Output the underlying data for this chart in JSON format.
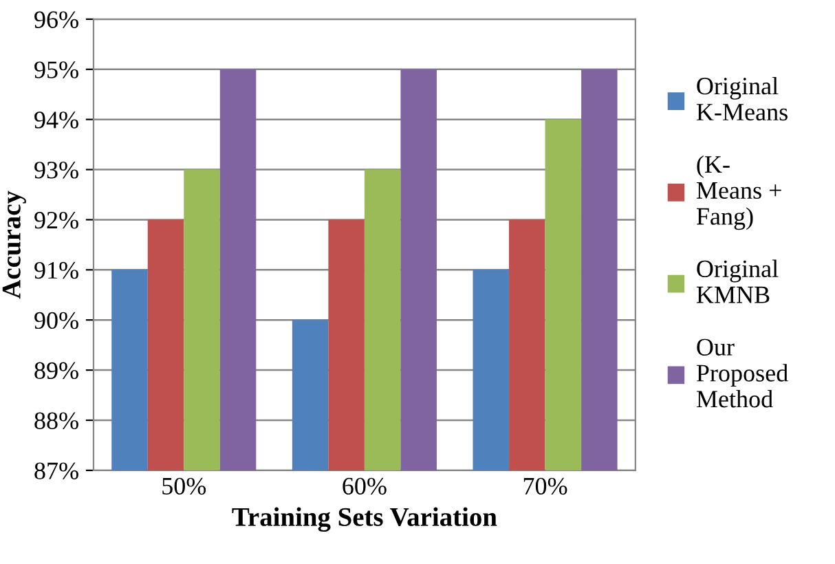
{
  "chart_data": {
    "type": "bar",
    "xlabel": "Training Sets Variation",
    "ylabel": "Accuracy",
    "categories": [
      "50%",
      "60%",
      "70%"
    ],
    "series": [
      {
        "name": "Original\nK-Means",
        "color": "#4f81bd",
        "values": [
          91,
          90,
          91
        ]
      },
      {
        "name": "(K-\nMeans +\nFang)",
        "color": "#c0504d",
        "values": [
          92,
          92,
          92
        ]
      },
      {
        "name": "Original\nKMNB",
        "color": "#9bbb59",
        "values": [
          93,
          93,
          94
        ]
      },
      {
        "name": "Our\nProposed\nMethod",
        "color": "#8064a2",
        "values": [
          95,
          95,
          95
        ]
      }
    ],
    "ylim": [
      87,
      96
    ],
    "yticks": [
      {
        "value": 87,
        "label": "87%"
      },
      {
        "value": 88,
        "label": "88%"
      },
      {
        "value": 89,
        "label": "89%"
      },
      {
        "value": 90,
        "label": "90%"
      },
      {
        "value": 91,
        "label": "91%"
      },
      {
        "value": 92,
        "label": "92%"
      },
      {
        "value": 93,
        "label": "93%"
      },
      {
        "value": 94,
        "label": "94%"
      },
      {
        "value": 95,
        "label": "95%"
      },
      {
        "value": 96,
        "label": "96%"
      }
    ],
    "grid": "y",
    "legend": "right"
  }
}
